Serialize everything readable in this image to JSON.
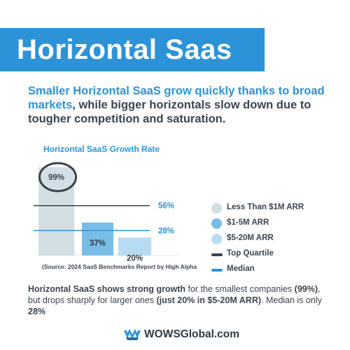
{
  "banner": {
    "title": "Horizontal Saas"
  },
  "headline": {
    "part1": "Smaller Horizontal SaaS grow quickly thanks to broad markets",
    "part2": ", while bigger horizontals slow down due to tougher competition and saturation."
  },
  "colors": {
    "accent": "#2d93d8",
    "bar_small": "#d3dee5",
    "bar_mid": "#79bde6",
    "bar_large": "#b7dbf2",
    "top_quartile": "#3a414a",
    "median": "#2d93d8"
  },
  "chart_data": {
    "type": "bar",
    "title": "Horizontal SaaS Growth Rate",
    "categories": [
      "Less Than $1M ARR",
      "$1-5M ARR",
      "$5-20M ARR"
    ],
    "values": [
      99,
      37,
      20
    ],
    "value_labels": [
      "99%",
      "37%",
      "20%"
    ],
    "ylim": [
      0,
      110
    ],
    "reference_lines": [
      {
        "name": "Top Quartile",
        "value": 56,
        "label": "56%"
      },
      {
        "name": "Median",
        "value": 28,
        "label": "28%"
      }
    ],
    "highlight": "Less Than $1M ARR",
    "legend": [
      "Less Than $1M ARR",
      "$1-5M ARR",
      "$5-20M ARR",
      "Top Quartile",
      "Median"
    ],
    "legend_position": "right",
    "grid": false
  },
  "source": "(Source: 2024 SaaS Benchmarks Report by High Alpha",
  "summary": {
    "s1": "Horizontal SaaS shows strong growth",
    "s2": " for the smallest companies ",
    "s3": "(99%)",
    "s4": ", but drops sharply for larger ones ",
    "s5": "(just 20% in $5-20M ARR)",
    "s6": ". Median is only ",
    "s7": "28%"
  },
  "footer": {
    "brand": "WOWSGlobal.com",
    "logo_icon": "wows-logo-icon"
  }
}
